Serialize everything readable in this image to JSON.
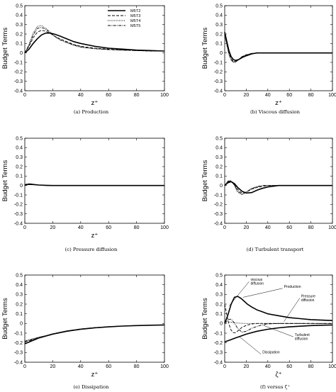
{
  "legend": {
    "entries": [
      {
        "label": "M5T2",
        "dash": "solid",
        "width": 1.6
      },
      {
        "label": "M5T3",
        "dash": "4,2",
        "width": 0.9
      },
      {
        "label": "M5T4",
        "dash": "1,1.3",
        "width": 0.9
      },
      {
        "label": "M5T5",
        "dash": "4,1.3,1,1.3",
        "width": 0.9
      }
    ]
  },
  "chart_data": [
    {
      "type": "line",
      "caption": "(a) Production",
      "xlabel": "z⁺",
      "ylabel": "Budget Terms",
      "xlim": [
        0,
        100
      ],
      "ylim": [
        -0.4,
        0.5
      ],
      "xticks": [
        0,
        20,
        40,
        60,
        80,
        100
      ],
      "yticks": [
        -0.4,
        -0.3,
        -0.2,
        -0.1,
        0,
        0.1,
        0.2,
        0.3,
        0.4,
        0.5
      ],
      "show_legend": true,
      "series": [
        {
          "name": "M5T2",
          "x": [
            0,
            3,
            6,
            9,
            12,
            15,
            18,
            21,
            25,
            30,
            35,
            40,
            50,
            60,
            70,
            80,
            90,
            100
          ],
          "y": [
            0,
            0.04,
            0.1,
            0.15,
            0.19,
            0.21,
            0.21,
            0.2,
            0.18,
            0.15,
            0.12,
            0.1,
            0.07,
            0.05,
            0.04,
            0.03,
            0.025,
            0.02
          ]
        },
        {
          "name": "M5T3",
          "x": [
            0,
            3,
            6,
            9,
            12,
            15,
            18,
            21,
            25,
            30,
            35,
            40,
            50,
            60,
            70,
            80,
            90,
            100
          ],
          "y": [
            0,
            0.07,
            0.16,
            0.22,
            0.24,
            0.23,
            0.21,
            0.18,
            0.15,
            0.12,
            0.09,
            0.07,
            0.05,
            0.04,
            0.03,
            0.025,
            0.02,
            0.02
          ]
        },
        {
          "name": "M5T4",
          "x": [
            0,
            3,
            6,
            9,
            12,
            15,
            18,
            21,
            25,
            30,
            35,
            40,
            50,
            60,
            70,
            80,
            90,
            100
          ],
          "y": [
            0,
            0.09,
            0.21,
            0.28,
            0.29,
            0.26,
            0.22,
            0.18,
            0.14,
            0.11,
            0.08,
            0.06,
            0.045,
            0.035,
            0.03,
            0.025,
            0.02,
            0.02
          ]
        },
        {
          "name": "M5T5",
          "x": [
            0,
            3,
            6,
            9,
            12,
            15,
            18,
            21,
            25,
            30,
            35,
            40,
            50,
            60,
            70,
            80,
            90,
            100
          ],
          "y": [
            0,
            0.08,
            0.19,
            0.26,
            0.27,
            0.25,
            0.22,
            0.18,
            0.14,
            0.11,
            0.085,
            0.065,
            0.045,
            0.035,
            0.03,
            0.025,
            0.02,
            0.02
          ]
        }
      ]
    },
    {
      "type": "line",
      "caption": "(b) Viscous diffusion",
      "xlabel": "z⁺",
      "ylabel": "Budget Terms",
      "xlim": [
        0,
        100
      ],
      "ylim": [
        -0.4,
        0.5
      ],
      "xticks": [
        0,
        20,
        40,
        60,
        80,
        100
      ],
      "yticks": [
        -0.4,
        -0.3,
        -0.2,
        -0.1,
        0,
        0.1,
        0.2,
        0.3,
        0.4,
        0.5
      ],
      "show_legend": false,
      "series": [
        {
          "name": "M5T2",
          "x": [
            0,
            2,
            4,
            6,
            8,
            10,
            13,
            16,
            20,
            25,
            30,
            40,
            100
          ],
          "y": [
            0.22,
            0.12,
            0.02,
            -0.04,
            -0.07,
            -0.08,
            -0.07,
            -0.05,
            -0.03,
            -0.01,
            0,
            0,
            0
          ]
        },
        {
          "name": "M5T3",
          "x": [
            0,
            2,
            4,
            6,
            8,
            10,
            13,
            16,
            20,
            25,
            30,
            40,
            100
          ],
          "y": [
            0.2,
            0.1,
            0,
            -0.06,
            -0.09,
            -0.09,
            -0.07,
            -0.04,
            -0.02,
            -0.01,
            0,
            0,
            0
          ]
        },
        {
          "name": "M5T4",
          "x": [
            0,
            2,
            4,
            6,
            8,
            10,
            13,
            16,
            20,
            25,
            30,
            40,
            100
          ],
          "y": [
            0.19,
            0.08,
            -0.02,
            -0.08,
            -0.1,
            -0.1,
            -0.07,
            -0.04,
            -0.02,
            -0.005,
            0,
            0,
            0
          ]
        },
        {
          "name": "M5T5",
          "x": [
            0,
            2,
            4,
            6,
            8,
            10,
            13,
            16,
            20,
            25,
            30,
            40,
            100
          ],
          "y": [
            0.2,
            0.09,
            -0.01,
            -0.07,
            -0.095,
            -0.095,
            -0.07,
            -0.04,
            -0.02,
            -0.005,
            0,
            0,
            0
          ]
        }
      ]
    },
    {
      "type": "line",
      "caption": "(c) Pressure diffusion",
      "xlabel": "z⁺",
      "ylabel": "Budget Terms",
      "xlim": [
        0,
        100
      ],
      "ylim": [
        -0.4,
        0.5
      ],
      "xticks": [
        0,
        20,
        40,
        60,
        80,
        100
      ],
      "yticks": [
        -0.4,
        -0.3,
        -0.2,
        -0.1,
        0,
        0.1,
        0.2,
        0.3,
        0.4,
        0.5
      ],
      "show_legend": false,
      "series": [
        {
          "name": "M5T2",
          "x": [
            0,
            3,
            6,
            10,
            15,
            20,
            30,
            40,
            100
          ],
          "y": [
            0.005,
            0.012,
            0.01,
            0.005,
            0.002,
            0,
            0,
            0,
            0
          ]
        },
        {
          "name": "M5T3",
          "x": [
            0,
            3,
            6,
            10,
            15,
            20,
            30,
            40,
            100
          ],
          "y": [
            0.008,
            0.016,
            0.012,
            0.005,
            0.001,
            0,
            0,
            0,
            0
          ]
        },
        {
          "name": "M5T4",
          "x": [
            0,
            3,
            6,
            10,
            15,
            20,
            30,
            40,
            100
          ],
          "y": [
            0.01,
            0.02,
            0.014,
            0.004,
            0,
            -0.002,
            0,
            0,
            0
          ]
        },
        {
          "name": "M5T5",
          "x": [
            0,
            3,
            6,
            10,
            15,
            20,
            30,
            40,
            100
          ],
          "y": [
            0.009,
            0.018,
            0.013,
            0.004,
            0,
            -0.001,
            0,
            0,
            0
          ]
        }
      ]
    },
    {
      "type": "line",
      "caption": "(d) Turbulent transport",
      "xlabel": "",
      "ylabel": "Budget Terms",
      "xlim": [
        0,
        100
      ],
      "ylim": [
        -0.4,
        0.5
      ],
      "xticks": [
        0,
        20,
        40,
        60,
        80,
        100
      ],
      "yticks": [
        -0.4,
        -0.3,
        -0.2,
        -0.1,
        0,
        0.1,
        0.2,
        0.3,
        0.4,
        0.5
      ],
      "show_legend": false,
      "series": [
        {
          "name": "M5T2",
          "x": [
            0,
            3,
            6,
            9,
            12,
            16,
            20,
            25,
            30,
            35,
            40,
            50,
            60,
            100
          ],
          "y": [
            0,
            0.03,
            0.04,
            0.02,
            -0.02,
            -0.06,
            -0.08,
            -0.075,
            -0.05,
            -0.03,
            -0.015,
            0,
            0,
            0
          ]
        },
        {
          "name": "M5T3",
          "x": [
            0,
            3,
            6,
            9,
            12,
            16,
            20,
            25,
            30,
            35,
            40,
            50,
            60,
            100
          ],
          "y": [
            0,
            0.04,
            0.04,
            0.01,
            -0.04,
            -0.08,
            -0.07,
            -0.04,
            -0.02,
            -0.01,
            0,
            0,
            0,
            0
          ]
        },
        {
          "name": "M5T4",
          "x": [
            0,
            3,
            6,
            9,
            12,
            16,
            20,
            25,
            30,
            35,
            40,
            50,
            60,
            100
          ],
          "y": [
            0,
            0.05,
            0.05,
            0.0,
            -0.07,
            -0.1,
            -0.07,
            -0.03,
            -0.01,
            0,
            0,
            0,
            0,
            0
          ]
        },
        {
          "name": "M5T5",
          "x": [
            0,
            3,
            6,
            9,
            12,
            16,
            20,
            25,
            30,
            35,
            40,
            50,
            60,
            100
          ],
          "y": [
            0,
            0.045,
            0.045,
            0.005,
            -0.06,
            -0.09,
            -0.07,
            -0.035,
            -0.015,
            0,
            0,
            0,
            0,
            0
          ]
        }
      ]
    },
    {
      "type": "line",
      "caption": "(e) Dissipation",
      "xlabel": "z⁺",
      "ylabel": "Budget Terms",
      "xlim": [
        0,
        100
      ],
      "ylim": [
        -0.4,
        0.5
      ],
      "xticks": [
        0,
        20,
        40,
        60,
        80,
        100
      ],
      "yticks": [
        -0.4,
        -0.3,
        -0.2,
        -0.1,
        0,
        0.1,
        0.2,
        0.3,
        0.4,
        0.5
      ],
      "show_legend": false,
      "series": [
        {
          "name": "M5T2",
          "x": [
            0,
            5,
            10,
            15,
            20,
            30,
            40,
            50,
            60,
            70,
            80,
            90,
            100
          ],
          "y": [
            -0.21,
            -0.18,
            -0.15,
            -0.13,
            -0.11,
            -0.08,
            -0.06,
            -0.045,
            -0.035,
            -0.027,
            -0.022,
            -0.018,
            -0.015
          ]
        },
        {
          "name": "M5T3",
          "x": [
            0,
            5,
            10,
            15,
            20,
            30,
            40,
            50,
            60,
            70,
            80,
            90,
            100
          ],
          "y": [
            -0.19,
            -0.17,
            -0.15,
            -0.13,
            -0.11,
            -0.08,
            -0.06,
            -0.045,
            -0.035,
            -0.027,
            -0.022,
            -0.018,
            -0.015
          ]
        },
        {
          "name": "M5T4",
          "x": [
            0,
            5,
            10,
            15,
            20,
            30,
            40,
            50,
            60,
            70,
            80,
            90,
            100
          ],
          "y": [
            -0.18,
            -0.16,
            -0.14,
            -0.125,
            -0.105,
            -0.075,
            -0.055,
            -0.042,
            -0.033,
            -0.026,
            -0.021,
            -0.018,
            -0.015
          ]
        },
        {
          "name": "M5T5",
          "x": [
            0,
            5,
            10,
            15,
            20,
            30,
            40,
            50,
            60,
            70,
            80,
            90,
            100
          ],
          "y": [
            -0.185,
            -0.165,
            -0.145,
            -0.128,
            -0.108,
            -0.078,
            -0.057,
            -0.043,
            -0.034,
            -0.026,
            -0.021,
            -0.018,
            -0.015
          ]
        }
      ]
    },
    {
      "type": "line",
      "caption": "(f) versus ζ⁺",
      "xlabel": "ζ⁺",
      "ylabel": "Budget Terms",
      "xlim": [
        0,
        100
      ],
      "ylim": [
        -0.4,
        0.5
      ],
      "xticks": [
        0,
        20,
        40,
        60,
        80,
        100
      ],
      "yticks": [
        -0.4,
        -0.3,
        -0.2,
        -0.1,
        0,
        0.1,
        0.2,
        0.3,
        0.4,
        0.5
      ],
      "show_legend": false,
      "annotations": [
        "viscous diffusion",
        "Production",
        "Pressure diffusion",
        "Turbulent diffusion",
        "Dissipation"
      ],
      "series": [
        {
          "name": "Production",
          "x": [
            0,
            3,
            6,
            9,
            12,
            15,
            18,
            21,
            25,
            30,
            35,
            40,
            50,
            60,
            70,
            80,
            90,
            100
          ],
          "y": [
            0,
            0.09,
            0.2,
            0.27,
            0.28,
            0.26,
            0.23,
            0.2,
            0.17,
            0.14,
            0.12,
            0.1,
            0.08,
            0.06,
            0.05,
            0.04,
            0.035,
            0.03
          ]
        },
        {
          "name": "viscous diffusion",
          "x": [
            0,
            2,
            4,
            6,
            8,
            10,
            13,
            16,
            20,
            25,
            30,
            40,
            100
          ],
          "y": [
            0.2,
            0.09,
            -0.01,
            -0.07,
            -0.095,
            -0.095,
            -0.07,
            -0.04,
            -0.02,
            -0.005,
            0,
            0,
            0
          ]
        },
        {
          "name": "Pressure diffusion",
          "x": [
            0,
            3,
            6,
            10,
            15,
            20,
            30,
            40,
            60,
            80,
            100
          ],
          "y": [
            0.01,
            0.018,
            0.013,
            0.005,
            0.002,
            0,
            0,
            0,
            0,
            0,
            0
          ]
        },
        {
          "name": "Turbulent diffusion",
          "x": [
            0,
            3,
            6,
            9,
            12,
            16,
            20,
            25,
            30,
            35,
            40,
            50,
            100
          ],
          "y": [
            0,
            0.04,
            0.045,
            0.005,
            -0.05,
            -0.09,
            -0.08,
            -0.05,
            -0.03,
            -0.015,
            -0.005,
            0,
            0
          ]
        },
        {
          "name": "Dissipation",
          "x": [
            0,
            5,
            10,
            15,
            20,
            30,
            40,
            50,
            60,
            70,
            80,
            90,
            100
          ],
          "y": [
            -0.19,
            -0.17,
            -0.15,
            -0.13,
            -0.11,
            -0.08,
            -0.06,
            -0.045,
            -0.035,
            -0.028,
            -0.022,
            -0.018,
            -0.015
          ]
        }
      ]
    }
  ]
}
